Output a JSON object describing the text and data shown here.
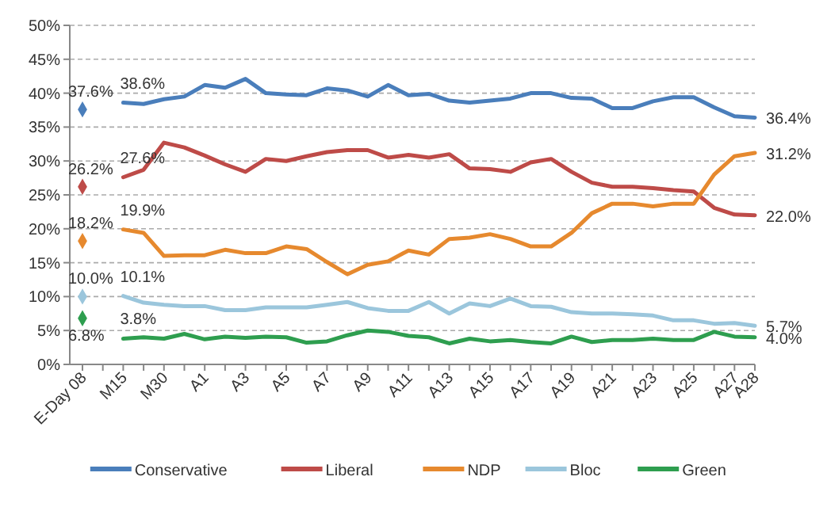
{
  "chart_data": {
    "type": "line",
    "categories": [
      "E-Day 08",
      null,
      "M15",
      null,
      "M30",
      null,
      "A1",
      null,
      "A3",
      null,
      "A5",
      null,
      "A7",
      null,
      "A9",
      null,
      "A11",
      null,
      "A13",
      null,
      "A15",
      null,
      "A17",
      null,
      "A19",
      null,
      "A21",
      null,
      "A23",
      null,
      "A25",
      null,
      "A27",
      "A28"
    ],
    "series": [
      {
        "name": "Conservative",
        "color": "#4a7ebb",
        "values": [
          null,
          null,
          38.6,
          38.4,
          39.1,
          39.5,
          41.2,
          40.8,
          42.1,
          40.0,
          39.8,
          39.7,
          40.7,
          40.4,
          39.5,
          41.2,
          39.7,
          39.9,
          38.9,
          38.6,
          38.9,
          39.2,
          40.0,
          40.0,
          39.3,
          39.2,
          37.8,
          37.8,
          38.8,
          39.4,
          39.4,
          37.9,
          36.6,
          36.4
        ],
        "value_labels": [
          null,
          null,
          "38.6%",
          null,
          null,
          null,
          null,
          null,
          null,
          null,
          null,
          null,
          null,
          null,
          null,
          null,
          null,
          null,
          null,
          null,
          null,
          null,
          null,
          null,
          null,
          null,
          null,
          null,
          null,
          null,
          null,
          null,
          null,
          "36.4%"
        ]
      },
      {
        "name": "Liberal",
        "color": "#be4b48",
        "values": [
          null,
          null,
          27.6,
          28.7,
          32.7,
          32.0,
          30.8,
          29.5,
          28.4,
          30.3,
          30.0,
          30.7,
          31.3,
          31.6,
          31.6,
          30.5,
          30.9,
          30.5,
          31.0,
          28.9,
          28.8,
          28.4,
          29.8,
          30.3,
          28.4,
          26.8,
          26.2,
          26.2,
          26.0,
          25.7,
          25.5,
          23.1,
          22.1,
          22.0
        ],
        "value_labels": [
          null,
          null,
          "27.6%",
          null,
          null,
          null,
          null,
          null,
          null,
          null,
          null,
          null,
          null,
          null,
          null,
          null,
          null,
          null,
          null,
          null,
          null,
          null,
          null,
          null,
          null,
          null,
          null,
          null,
          null,
          null,
          null,
          null,
          null,
          "22.0%"
        ]
      },
      {
        "name": "NDP",
        "color": "#e6892e",
        "values": [
          null,
          null,
          19.9,
          19.4,
          16.0,
          16.1,
          16.1,
          16.9,
          16.4,
          16.4,
          17.4,
          17.0,
          15.1,
          13.3,
          14.7,
          15.2,
          16.8,
          16.2,
          18.5,
          18.7,
          19.2,
          18.5,
          17.4,
          17.4,
          19.4,
          22.3,
          23.7,
          23.7,
          23.3,
          23.7,
          23.7,
          28.0,
          30.7,
          31.2
        ],
        "value_labels": [
          null,
          null,
          "19.9%",
          null,
          null,
          null,
          null,
          null,
          null,
          null,
          null,
          null,
          null,
          null,
          null,
          null,
          null,
          null,
          null,
          null,
          null,
          null,
          null,
          null,
          null,
          null,
          null,
          null,
          null,
          null,
          null,
          null,
          null,
          "31.2%"
        ]
      },
      {
        "name": "Bloc",
        "color": "#9bc6dc",
        "values": [
          null,
          null,
          10.1,
          9.1,
          8.8,
          8.6,
          8.6,
          8.0,
          8.0,
          8.4,
          8.4,
          8.4,
          8.8,
          9.2,
          8.3,
          7.9,
          7.9,
          9.2,
          7.5,
          9.0,
          8.6,
          9.7,
          8.6,
          8.5,
          7.7,
          7.5,
          7.5,
          7.4,
          7.2,
          6.5,
          6.5,
          6.0,
          6.1,
          5.7
        ],
        "value_labels": [
          null,
          null,
          "10.1%",
          null,
          null,
          null,
          null,
          null,
          null,
          null,
          null,
          null,
          null,
          null,
          null,
          null,
          null,
          null,
          null,
          null,
          null,
          null,
          null,
          null,
          null,
          null,
          null,
          null,
          null,
          null,
          null,
          null,
          null,
          "5.7%"
        ]
      },
      {
        "name": "Green",
        "color": "#2e9e4f",
        "values": [
          null,
          null,
          3.8,
          4.0,
          3.8,
          4.5,
          3.7,
          4.1,
          3.9,
          4.1,
          4.0,
          3.2,
          3.4,
          4.3,
          5.0,
          4.8,
          4.2,
          4.0,
          3.1,
          3.8,
          3.4,
          3.6,
          3.3,
          3.1,
          4.1,
          3.3,
          3.6,
          3.6,
          3.8,
          3.6,
          3.6,
          4.8,
          4.1,
          4.0
        ],
        "value_labels": [
          null,
          null,
          "3.8%",
          null,
          null,
          null,
          null,
          null,
          null,
          null,
          null,
          null,
          null,
          null,
          null,
          null,
          null,
          null,
          null,
          null,
          null,
          null,
          null,
          null,
          null,
          null,
          null,
          null,
          null,
          null,
          null,
          null,
          null,
          "4.0%"
        ]
      },
      {
        "type": "scatter",
        "marker": "diamond",
        "color": "#4a7ebb",
        "x": [
          "E-Day 08"
        ],
        "values": [
          37.6
        ],
        "value_labels": [
          "37.6%"
        ]
      },
      {
        "type": "scatter",
        "marker": "diamond",
        "color": "#be4b48",
        "x": [
          "E-Day 08"
        ],
        "values": [
          26.2
        ],
        "value_labels": [
          "26.2%"
        ]
      },
      {
        "type": "scatter",
        "marker": "diamond",
        "color": "#e6892e",
        "x": [
          "E-Day 08"
        ],
        "values": [
          18.2
        ],
        "value_labels": [
          "18.2%"
        ]
      },
      {
        "type": "scatter",
        "marker": "diamond",
        "color": "#9bc6dc",
        "x": [
          "E-Day 08"
        ],
        "values": [
          10.0
        ],
        "value_labels": [
          "10.0%"
        ]
      },
      {
        "type": "scatter",
        "marker": "diamond",
        "color": "#2e9e4f",
        "x": [
          "E-Day 08"
        ],
        "values": [
          6.8
        ],
        "value_labels": [
          "6.8%"
        ]
      }
    ],
    "ylim": [
      0,
      50
    ],
    "yticks": [
      {
        "value": 0,
        "label": "0%"
      },
      {
        "value": 5,
        "label": "5%"
      },
      {
        "value": 10,
        "label": "10%"
      },
      {
        "value": 15,
        "label": "15%"
      },
      {
        "value": 20,
        "label": "20%"
      },
      {
        "value": 25,
        "label": "25%"
      },
      {
        "value": 30,
        "label": "30%"
      },
      {
        "value": 35,
        "label": "35%"
      },
      {
        "value": 40,
        "label": "40%"
      },
      {
        "value": 45,
        "label": "45%"
      },
      {
        "value": 50,
        "label": "50%"
      }
    ],
    "grid": "y",
    "legend": "bottom"
  }
}
